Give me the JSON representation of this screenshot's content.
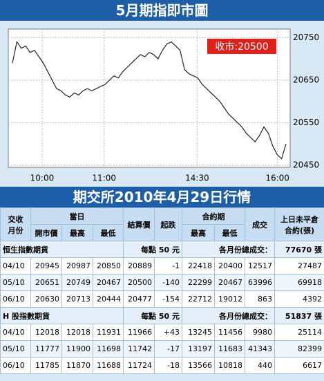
{
  "header": {
    "title": "5月期指即市圖"
  },
  "chart_data": {
    "type": "line",
    "values": [
      20690,
      20740,
      20725,
      20730,
      20715,
      20720,
      20705,
      20690,
      20670,
      20650,
      20630,
      20625,
      20615,
      20610,
      20620,
      20615,
      20625,
      20630,
      20625,
      20630,
      20635,
      20640,
      20650,
      20660,
      20655,
      20670,
      20680,
      20690,
      20700,
      20710,
      20705,
      20715,
      20710,
      20700,
      20720,
      20735,
      20740,
      20730,
      20720,
      20675,
      20665,
      20660,
      20655,
      20640,
      20630,
      20620,
      20610,
      20600,
      20585,
      20570,
      20560,
      20550,
      20540,
      20525,
      20515,
      20505,
      20520,
      20540,
      20525,
      20495,
      20475,
      20465,
      20500
    ],
    "color": "#222222",
    "ylim": [
      20445,
      20770
    ],
    "yticks": [
      20450,
      20550,
      20650,
      20750
    ],
    "x_labels": [
      "10:00",
      "11:00",
      "14:30",
      "16:00"
    ],
    "annotation": "收市:20500",
    "grid": true
  },
  "table": {
    "title": "期交所2010年4月29日行情",
    "header": {
      "month": [
        "交收",
        "月份"
      ],
      "day": "當日",
      "open": "開市價",
      "day_high": "最高",
      "day_low": "最低",
      "settle": "結算價",
      "change": "起跌",
      "contract": "合約期",
      "contract_high": "最高",
      "contract_low": "最低",
      "volume": "成交",
      "oi": [
        "上日未平倉",
        "合約(張)"
      ]
    },
    "sections": [
      {
        "name": "恒生指數期貨",
        "unit": "每點 50 元",
        "total_label": "各月份總成交：",
        "total": "77670 張",
        "rows": [
          [
            "04/10",
            "20945",
            "20987",
            "20850",
            "20889",
            "-1",
            "22418",
            "20400",
            "12517",
            "27487"
          ],
          [
            "05/10",
            "20651",
            "20749",
            "20467",
            "20500",
            "-140",
            "22299",
            "20467",
            "63996",
            "69918"
          ],
          [
            "06/10",
            "20630",
            "20713",
            "20444",
            "20477",
            "-154",
            "22712",
            "19012",
            "863",
            "4392"
          ]
        ]
      },
      {
        "name": "H 股指數期貨",
        "unit": "每點 50 元",
        "total_label": "各月份總成交：",
        "total": "51837 張",
        "rows": [
          [
            "04/10",
            "12018",
            "12018",
            "11931",
            "11966",
            "+43",
            "13245",
            "11456",
            "9980",
            "25114"
          ],
          [
            "05/10",
            "11777",
            "11900",
            "11698",
            "11742",
            "-17",
            "13197",
            "11683",
            "41343",
            "82399"
          ],
          [
            "06/10",
            "11785",
            "11870",
            "11688",
            "11724",
            "-18",
            "13566",
            "10818",
            "440",
            "6617"
          ]
        ]
      }
    ]
  }
}
